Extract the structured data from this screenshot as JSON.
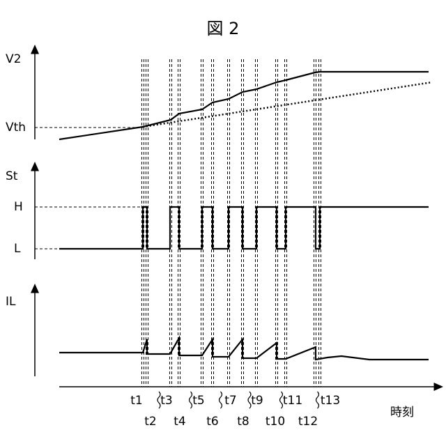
{
  "title": "図 2",
  "axes": {
    "v2": "V2",
    "vth": "Vth",
    "st": "St",
    "h": "H",
    "l": "L",
    "il": "IL",
    "time": "時刻"
  },
  "time_labels": [
    "t1",
    "t2",
    "t3",
    "t4",
    "t5",
    "t6",
    "t7",
    "t8",
    "t9",
    "t10",
    "t11",
    "t12",
    "t13"
  ]
}
